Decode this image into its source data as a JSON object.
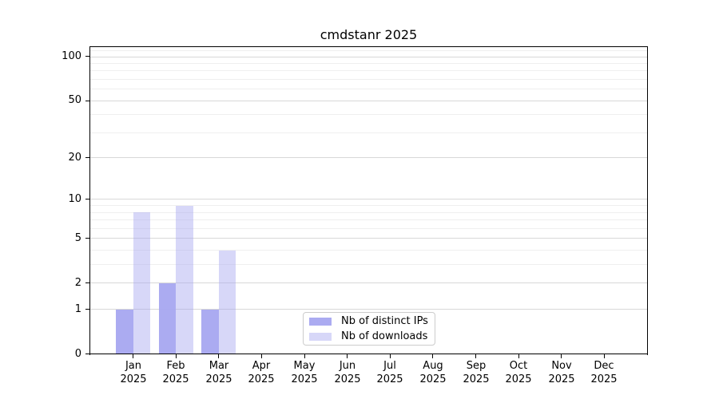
{
  "title": "cmdstanr 2025",
  "chart_data": {
    "type": "bar",
    "title": "cmdstanr 2025",
    "categories": [
      "Jan",
      "Feb",
      "Mar",
      "Apr",
      "May",
      "Jun",
      "Jul",
      "Aug",
      "Sep",
      "Oct",
      "Nov",
      "Dec"
    ],
    "year_label": "2025",
    "series": [
      {
        "name": "Nb of distinct IPs",
        "color": "rgba(167,167,240,0.95)",
        "values": [
          1,
          2,
          1,
          0,
          0,
          0,
          0,
          0,
          0,
          0,
          0,
          0
        ]
      },
      {
        "name": "Nb of downloads",
        "color": "rgba(167,167,240,0.45)",
        "values": [
          8,
          9,
          4,
          0,
          0,
          0,
          0,
          0,
          0,
          0,
          0,
          0
        ]
      }
    ],
    "yscale": "log1p",
    "ylim": [
      0,
      117.6
    ],
    "yticks": [
      0,
      1,
      2,
      5,
      10,
      20,
      50,
      100
    ],
    "yticks_minor": [
      3,
      4,
      6,
      7,
      8,
      9,
      30,
      40,
      60,
      70,
      80,
      90,
      110
    ],
    "xlim": [
      -1,
      12
    ],
    "bar_width": 0.4,
    "grid": true,
    "legend_position": "lower center",
    "colors": {
      "grid_major": "#d8d8d8",
      "grid_minor": "#efefef",
      "spine": "#000000",
      "text": "#000000"
    }
  }
}
